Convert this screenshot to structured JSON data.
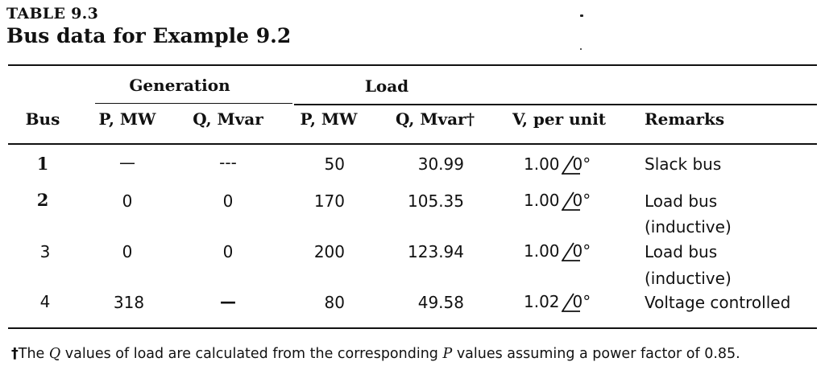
{
  "caption": {
    "label": "TABLE 9.3",
    "title": "Bus data for Example 9.2"
  },
  "headers": {
    "group_generation": "Generation",
    "group_load": "Load",
    "bus": "Bus",
    "gen_p": "P, MW",
    "gen_q": "Q, Mvar",
    "load_p": "P, MW",
    "load_q": "Q, Mvar†",
    "voltage": "V, per unit",
    "remarks": "Remarks"
  },
  "rows": [
    {
      "bus": "1",
      "gen_p": "—",
      "gen_q": "---",
      "load_p": "50",
      "load_q": "30.99",
      "v_mag": "1.00",
      "v_angle": "0°",
      "remarks_1": "Slack bus",
      "remarks_2": ""
    },
    {
      "bus": "2",
      "gen_p": "0",
      "gen_q": "0",
      "load_p": "170",
      "load_q": "105.35",
      "v_mag": "1.00",
      "v_angle": "0°",
      "remarks_1": "Load bus",
      "remarks_2": "(inductive)"
    },
    {
      "bus": "3",
      "gen_p": "0",
      "gen_q": "0",
      "load_p": "200",
      "load_q": "123.94",
      "v_mag": "1.00",
      "v_angle": "0°",
      "remarks_1": "Load bus",
      "remarks_2": "(inductive)"
    },
    {
      "bus": "4",
      "gen_p": "318",
      "gen_q": "—",
      "load_p": "80",
      "load_q": "49.58",
      "v_mag": "1.02",
      "v_angle": "0°",
      "remarks_1": "Voltage controlled",
      "remarks_2": ""
    }
  ],
  "footnote": {
    "mark": "†",
    "part1": "The ",
    "q_symbol": "Q",
    "part2": " values of load are calculated from the corresponding ",
    "p_symbol": "P",
    "part3": " values assuming a power factor of 0.85."
  }
}
